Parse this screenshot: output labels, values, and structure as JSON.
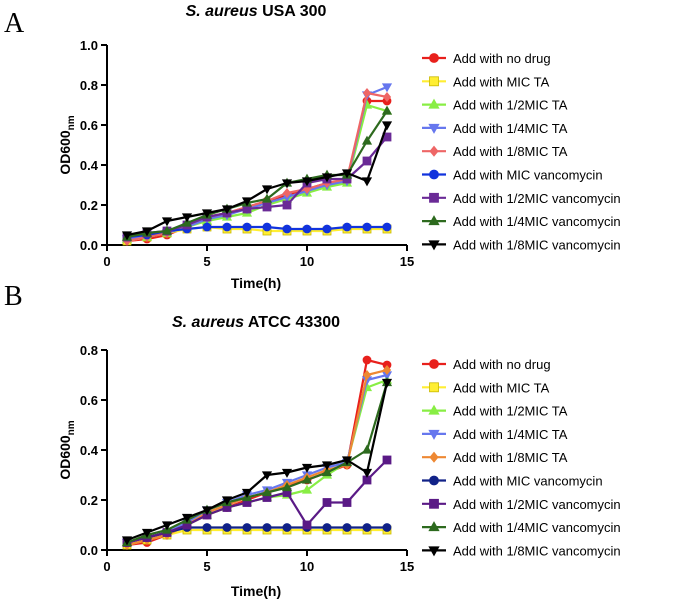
{
  "chart_data": [
    {
      "type": "line",
      "panel": "A",
      "title_italic": "S. aureus",
      "title_rest": " USA 300",
      "xlabel": "Time(h)",
      "ylabel_main": "OD600",
      "ylabel_sub": "nm",
      "xlim": [
        0,
        15
      ],
      "ylim": [
        0,
        1.0
      ],
      "xticks": [
        0,
        5,
        10,
        15
      ],
      "yticks": [
        0.0,
        0.2,
        0.4,
        0.6,
        0.8,
        1.0
      ],
      "ytick_labels": [
        "0.0",
        "0.2",
        "0.4",
        "0.6",
        "0.8",
        "1.0"
      ],
      "x": [
        1,
        2,
        3,
        4,
        5,
        6,
        7,
        8,
        9,
        10,
        11,
        12,
        13,
        14
      ],
      "series": [
        {
          "name": "Add with no drug",
          "color": "#e8201c",
          "marker": "circle",
          "values": [
            0.02,
            0.03,
            0.05,
            0.09,
            0.14,
            0.16,
            0.19,
            0.22,
            0.25,
            0.28,
            0.31,
            0.32,
            0.72,
            0.72
          ]
        },
        {
          "name": "Add with MIC TA",
          "color": "#ffee33",
          "marker": "square",
          "values": [
            0.02,
            0.04,
            0.06,
            0.08,
            0.09,
            0.08,
            0.08,
            0.07,
            0.07,
            0.07,
            0.07,
            0.08,
            0.08,
            0.08
          ]
        },
        {
          "name": "Add with 1/2MIC TA",
          "color": "#88ee44",
          "marker": "triangle-up",
          "values": [
            0.03,
            0.04,
            0.06,
            0.09,
            0.12,
            0.14,
            0.16,
            0.2,
            0.23,
            0.26,
            0.29,
            0.31,
            0.7,
            0.67
          ]
        },
        {
          "name": "Add with 1/4MIC TA",
          "color": "#6677ee",
          "marker": "triangle-down",
          "values": [
            0.03,
            0.05,
            0.06,
            0.09,
            0.13,
            0.15,
            0.18,
            0.21,
            0.24,
            0.27,
            0.3,
            0.32,
            0.75,
            0.79
          ]
        },
        {
          "name": "Add with 1/8MIC TA",
          "color": "#ee6666",
          "marker": "diamond",
          "values": [
            0.02,
            0.04,
            0.06,
            0.1,
            0.14,
            0.16,
            0.19,
            0.22,
            0.26,
            0.28,
            0.31,
            0.33,
            0.76,
            0.74
          ]
        },
        {
          "name": "Add with MIC vancomycin",
          "color": "#1133dd",
          "marker": "circle",
          "values": [
            0.04,
            0.05,
            0.07,
            0.08,
            0.09,
            0.09,
            0.09,
            0.09,
            0.08,
            0.08,
            0.08,
            0.09,
            0.09,
            0.09
          ]
        },
        {
          "name": "Add with 1/2MIC vancomycin",
          "color": "#6a2a96",
          "marker": "square",
          "values": [
            0.04,
            0.06,
            0.07,
            0.1,
            0.14,
            0.16,
            0.18,
            0.19,
            0.2,
            0.31,
            0.33,
            0.33,
            0.42,
            0.54
          ]
        },
        {
          "name": "Add with 1/4MIC vancomycin",
          "color": "#2d6a1e",
          "marker": "triangle-up",
          "values": [
            0.04,
            0.06,
            0.07,
            0.11,
            0.15,
            0.18,
            0.21,
            0.23,
            0.31,
            0.33,
            0.35,
            0.35,
            0.52,
            0.67
          ]
        },
        {
          "name": "Add with 1/8MIC vancomycin",
          "color": "#000000",
          "marker": "triangle-down",
          "values": [
            0.05,
            0.07,
            0.12,
            0.14,
            0.16,
            0.18,
            0.22,
            0.28,
            0.31,
            0.32,
            0.34,
            0.36,
            0.32,
            0.6
          ]
        }
      ]
    },
    {
      "type": "line",
      "panel": "B",
      "title_italic": "S. aureus",
      "title_rest": " ATCC 43300",
      "xlabel": "Time(h)",
      "ylabel_main": "OD600",
      "ylabel_sub": "nm",
      "xlim": [
        0,
        15
      ],
      "ylim": [
        0,
        0.8
      ],
      "xticks": [
        0,
        5,
        10,
        15
      ],
      "yticks": [
        0.0,
        0.2,
        0.4,
        0.6,
        0.8
      ],
      "ytick_labels": [
        "0.0",
        "0.2",
        "0.4",
        "0.6",
        "0.8"
      ],
      "x": [
        1,
        2,
        3,
        4,
        5,
        6,
        7,
        8,
        9,
        10,
        11,
        12,
        13,
        14
      ],
      "series": [
        {
          "name": "Add with no drug",
          "color": "#e8201c",
          "marker": "circle",
          "values": [
            0.02,
            0.03,
            0.06,
            0.1,
            0.14,
            0.17,
            0.2,
            0.23,
            0.26,
            0.28,
            0.31,
            0.34,
            0.76,
            0.74
          ]
        },
        {
          "name": "Add with MIC TA",
          "color": "#ffee33",
          "marker": "square",
          "values": [
            0.02,
            0.04,
            0.06,
            0.08,
            0.08,
            0.08,
            0.08,
            0.08,
            0.08,
            0.08,
            0.08,
            0.08,
            0.08,
            0.08
          ]
        },
        {
          "name": "Add with 1/2MIC TA",
          "color": "#88ee44",
          "marker": "triangle-up",
          "values": [
            0.03,
            0.05,
            0.07,
            0.1,
            0.14,
            0.17,
            0.19,
            0.21,
            0.22,
            0.24,
            0.3,
            0.35,
            0.65,
            0.68
          ]
        },
        {
          "name": "Add with 1/4MIC TA",
          "color": "#6677ee",
          "marker": "triangle-down",
          "values": [
            0.03,
            0.05,
            0.07,
            0.11,
            0.16,
            0.19,
            0.22,
            0.24,
            0.27,
            0.3,
            0.33,
            0.35,
            0.68,
            0.7
          ]
        },
        {
          "name": "Add with 1/8MIC TA",
          "color": "#ee8833",
          "marker": "diamond",
          "values": [
            0.02,
            0.04,
            0.06,
            0.1,
            0.15,
            0.18,
            0.21,
            0.23,
            0.26,
            0.29,
            0.32,
            0.34,
            0.7,
            0.72
          ]
        },
        {
          "name": "Add with MIC vancomycin",
          "color": "#112288",
          "marker": "circle",
          "values": [
            0.03,
            0.05,
            0.07,
            0.09,
            0.09,
            0.09,
            0.09,
            0.09,
            0.09,
            0.09,
            0.09,
            0.09,
            0.09,
            0.09
          ]
        },
        {
          "name": "Add with 1/2MIC vancomycin",
          "color": "#5a1a86",
          "marker": "square",
          "values": [
            0.03,
            0.05,
            0.07,
            0.1,
            0.14,
            0.17,
            0.19,
            0.21,
            0.23,
            0.1,
            0.19,
            0.19,
            0.28,
            0.36
          ]
        },
        {
          "name": "Add with 1/4MIC vancomycin",
          "color": "#2d6a1e",
          "marker": "triangle-up",
          "values": [
            0.03,
            0.06,
            0.08,
            0.12,
            0.16,
            0.19,
            0.21,
            0.23,
            0.25,
            0.28,
            0.31,
            0.35,
            0.4,
            0.67
          ]
        },
        {
          "name": "Add with 1/8MIC vancomycin",
          "color": "#000000",
          "marker": "triangle-down",
          "values": [
            0.04,
            0.07,
            0.1,
            0.13,
            0.16,
            0.2,
            0.23,
            0.3,
            0.31,
            0.33,
            0.34,
            0.36,
            0.31,
            0.67
          ]
        }
      ]
    }
  ]
}
